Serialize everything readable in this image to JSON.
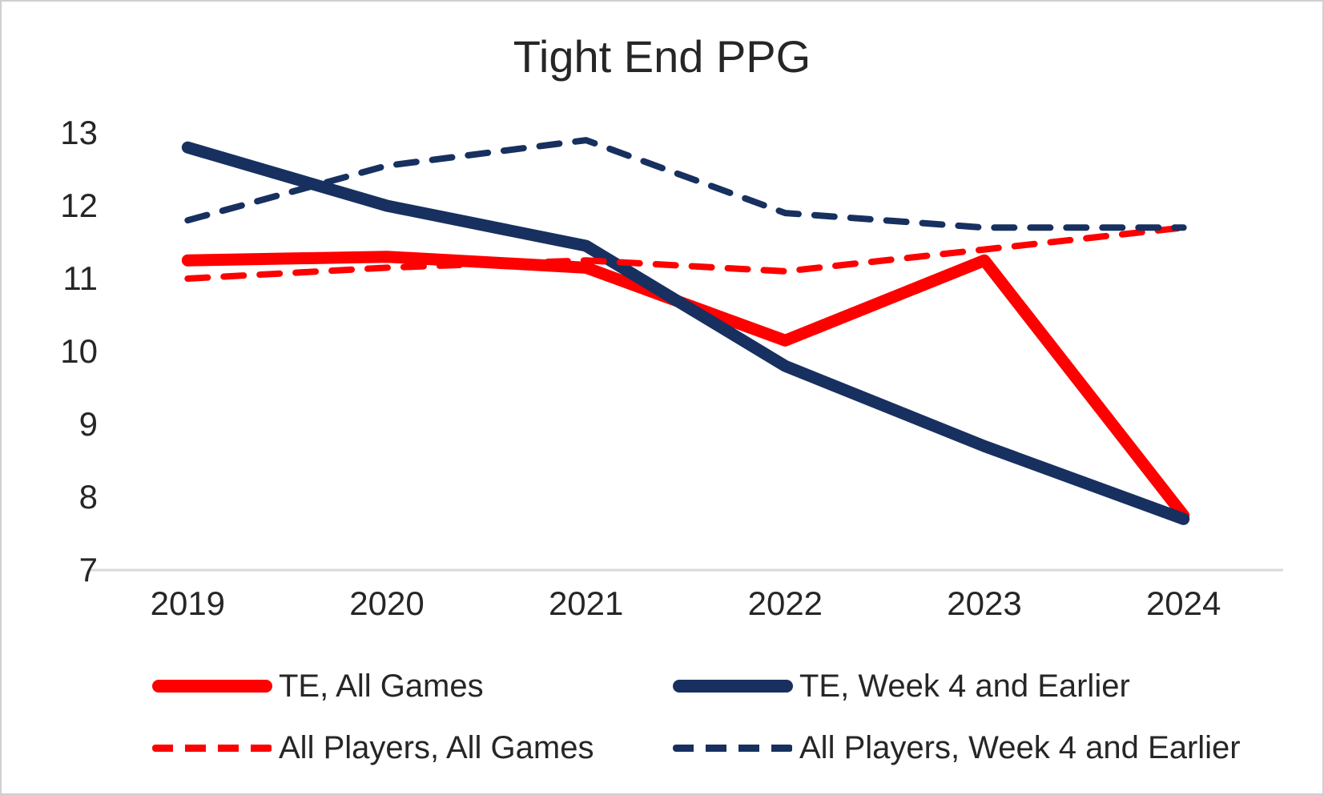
{
  "chart_data": {
    "type": "line",
    "title": "Tight End PPG",
    "categories": [
      "2019",
      "2020",
      "2021",
      "2022",
      "2023",
      "2024"
    ],
    "series": [
      {
        "name": "TE, All Games",
        "style": "solid",
        "color": "#FE0000",
        "values": [
          11.25,
          11.3,
          11.15,
          10.15,
          11.25,
          7.75
        ]
      },
      {
        "name": "TE, Week 4 and Earlier",
        "style": "solid",
        "color": "#17305F",
        "values": [
          12.8,
          12.0,
          11.45,
          9.8,
          8.7,
          7.7
        ]
      },
      {
        "name": "All Players, All Games",
        "style": "dashed",
        "color": "#FE0000",
        "values": [
          11.0,
          11.15,
          11.25,
          11.1,
          11.4,
          11.7
        ]
      },
      {
        "name": "All Players, Week 4 and Earlier",
        "style": "dashed",
        "color": "#17305F",
        "values": [
          11.8,
          12.55,
          12.9,
          11.9,
          11.7,
          11.7
        ]
      }
    ],
    "ylabel": "",
    "xlabel": "",
    "ylim": [
      7,
      13
    ],
    "yticks": [
      "13",
      "12",
      "11",
      "10",
      "9",
      "8",
      "7"
    ],
    "grid": "baseline-only",
    "legend_position": "bottom-two-columns",
    "colors": {
      "axis_line": "#D9D9D9",
      "text": "#262626"
    }
  }
}
